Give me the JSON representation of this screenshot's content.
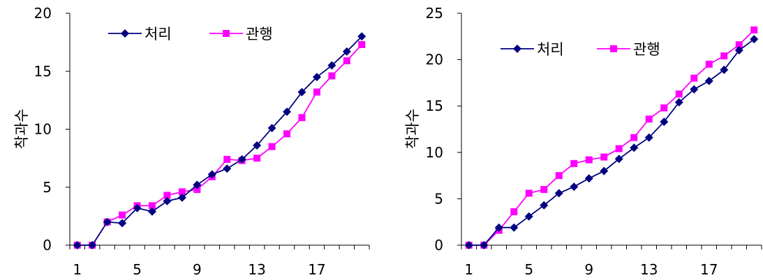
{
  "chart_data": [
    {
      "type": "line",
      "title": "",
      "xlabel": "",
      "ylabel": "착과수",
      "ylim": [
        0,
        20
      ],
      "yticks": [
        0,
        5,
        10,
        15,
        20
      ],
      "x": [
        1,
        2,
        3,
        4,
        5,
        6,
        7,
        8,
        9,
        10,
        11,
        12,
        13,
        14,
        15,
        16,
        17,
        18,
        19,
        20
      ],
      "xticks": [
        1,
        5,
        9,
        13,
        17
      ],
      "legend_position": "top-left",
      "grid": false,
      "series": [
        {
          "name": "처리",
          "color": "#000080",
          "marker": "diamond",
          "values": [
            0,
            0,
            2.0,
            1.9,
            3.2,
            2.9,
            3.8,
            4.1,
            5.2,
            6.1,
            6.6,
            7.4,
            8.6,
            10.1,
            11.5,
            13.2,
            14.5,
            15.5,
            16.7,
            18.0
          ]
        },
        {
          "name": "관행",
          "color": "#FF00FF",
          "marker": "square",
          "values": [
            0,
            0,
            2.0,
            2.6,
            3.4,
            3.4,
            4.3,
            4.6,
            4.8,
            5.9,
            7.4,
            7.3,
            7.5,
            8.5,
            9.6,
            11.0,
            13.2,
            14.6,
            15.9,
            17.3
          ]
        }
      ]
    },
    {
      "type": "line",
      "title": "",
      "xlabel": "",
      "ylabel": "착과수",
      "ylim": [
        0,
        25
      ],
      "yticks": [
        0,
        5,
        10,
        15,
        20,
        25
      ],
      "x": [
        1,
        2,
        3,
        4,
        5,
        6,
        7,
        8,
        9,
        10,
        11,
        12,
        13,
        14,
        15,
        16,
        17,
        18,
        19,
        20
      ],
      "xticks": [
        1,
        5,
        9,
        13,
        17
      ],
      "legend_position": "top-left",
      "grid": false,
      "series": [
        {
          "name": "처리",
          "color": "#000080",
          "marker": "diamond",
          "values": [
            0,
            0,
            1.9,
            1.9,
            3.1,
            4.3,
            5.6,
            6.3,
            7.2,
            8.0,
            9.3,
            10.5,
            11.6,
            13.3,
            15.4,
            16.8,
            17.7,
            18.9,
            21.0,
            22.2
          ]
        },
        {
          "name": "관행",
          "color": "#FF00FF",
          "marker": "square",
          "values": [
            0,
            0,
            1.6,
            3.6,
            5.6,
            6.0,
            7.5,
            8.8,
            9.2,
            9.5,
            10.4,
            11.6,
            13.6,
            14.8,
            16.3,
            18.0,
            19.5,
            20.4,
            21.6,
            23.2
          ]
        }
      ]
    }
  ]
}
